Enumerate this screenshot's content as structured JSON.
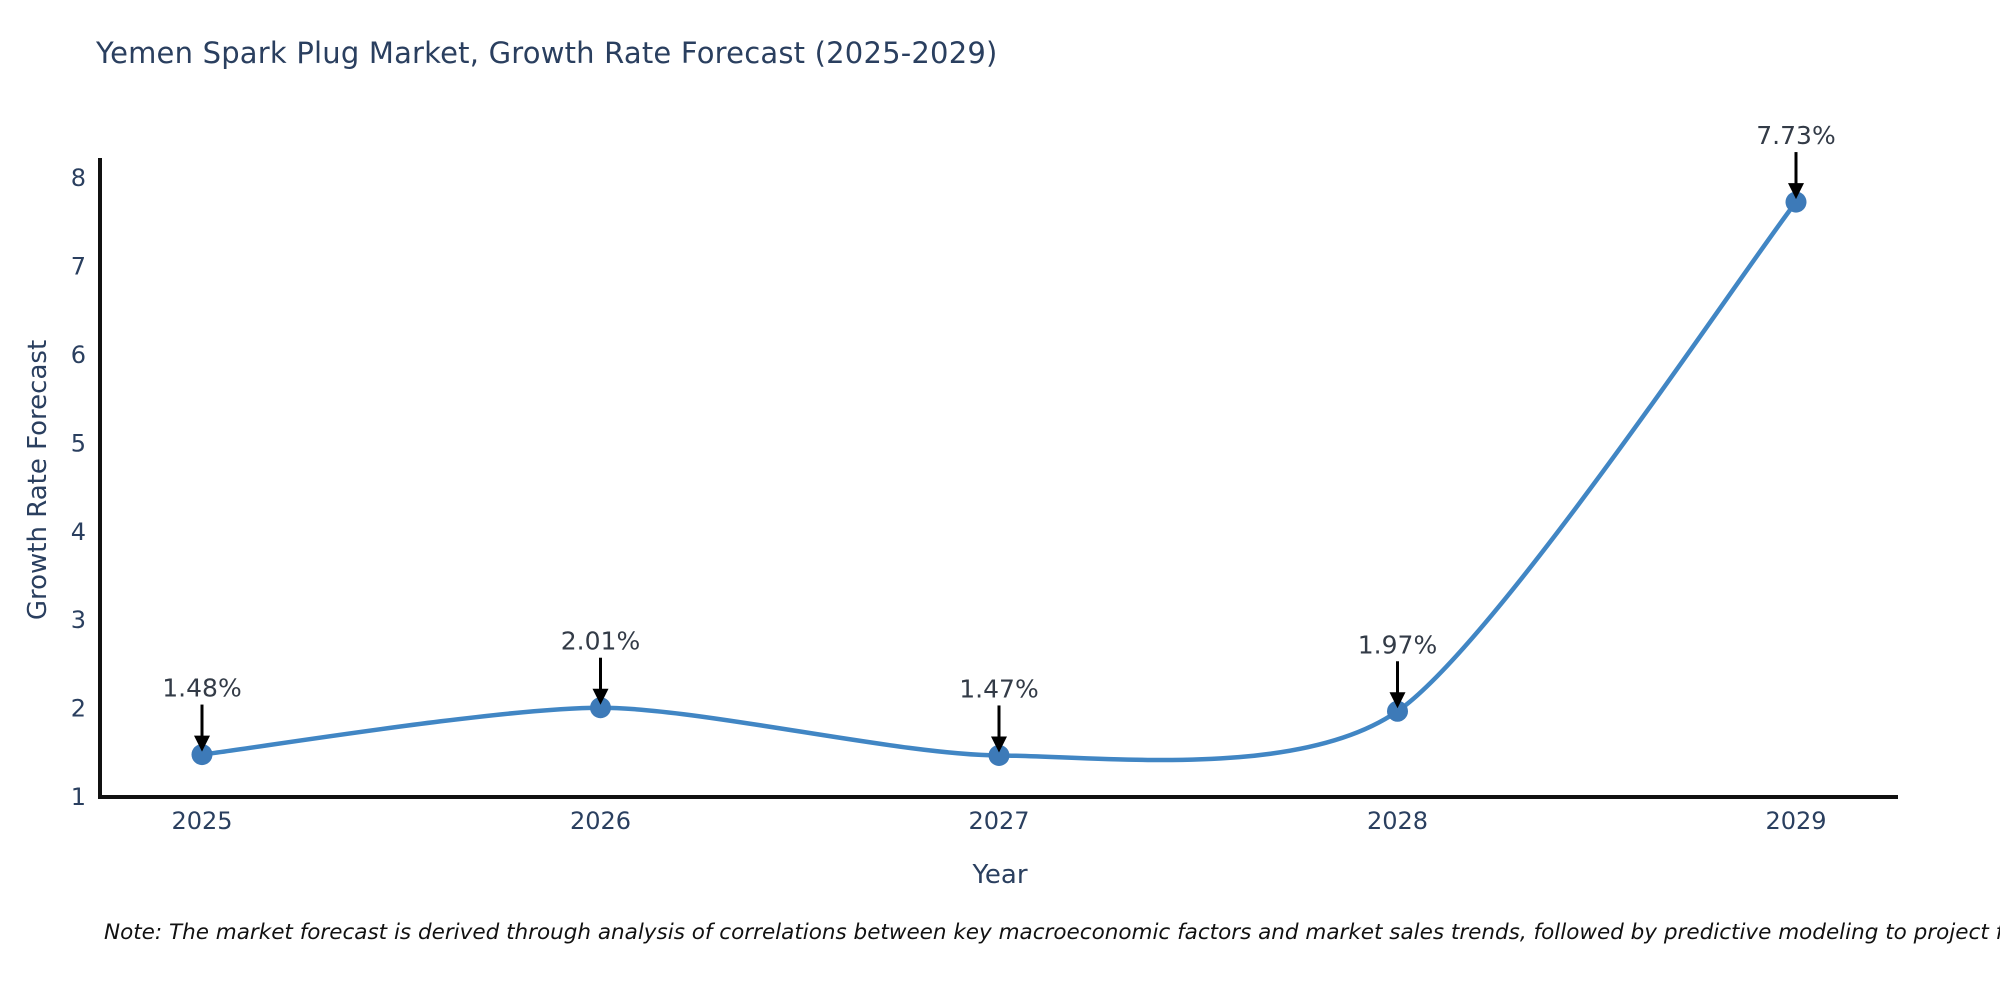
{
  "chart_data": {
    "type": "line",
    "title": "Yemen Spark Plug Market, Growth Rate Forecast (2025-2029)",
    "xlabel": "Year",
    "ylabel": "Growth Rate Forecast",
    "categories": [
      "2025",
      "2026",
      "2027",
      "2028",
      "2029"
    ],
    "series": [
      {
        "name": "Growth Rate Forecast",
        "values": [
          1.48,
          2.01,
          1.47,
          1.97,
          7.73
        ]
      }
    ],
    "point_labels": [
      "1.48%",
      "2.01%",
      "1.47%",
      "1.97%",
      "7.73%"
    ],
    "y_ticks": [
      1,
      2,
      3,
      4,
      5,
      6,
      7,
      8
    ],
    "ylim": [
      1,
      8.25
    ],
    "grid": false,
    "legend_position": "none",
    "line_shape": "spline",
    "colors": {
      "line": "#4186c4",
      "marker": "#3d7ab8",
      "axis": "#111111",
      "title_text": "#2a3f5f",
      "tick_text": "#2a3f5f",
      "annotation_text": "#333b47",
      "annotation_arrow": "#000000"
    }
  },
  "note": {
    "text": "Note: The market forecast is derived through analysis of correlations between key macroeconomic factors and market sales trends, followed by predictive modeling to project future sales."
  }
}
